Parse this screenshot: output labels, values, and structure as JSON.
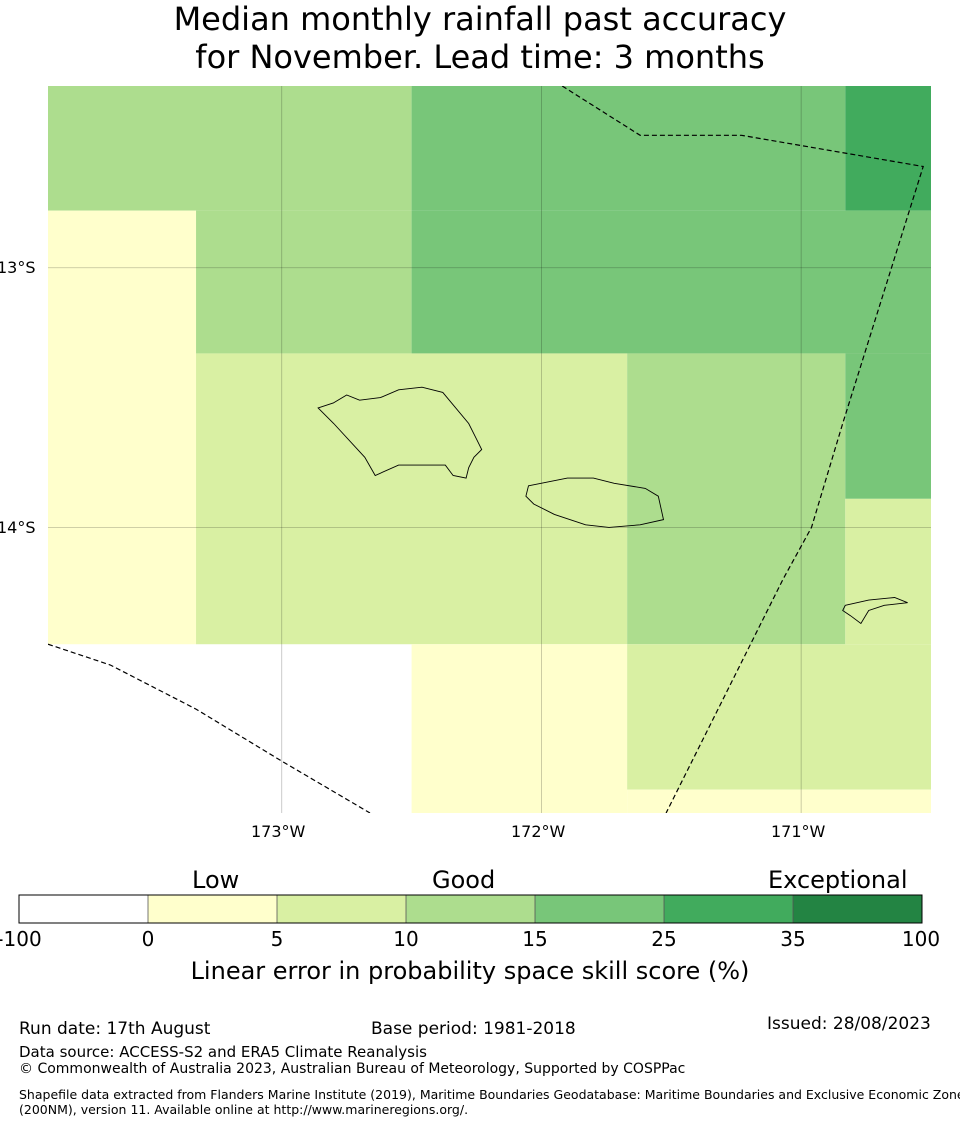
{
  "title": {
    "line1": "Median monthly rainfall past accuracy",
    "line2": "for November. Lead time: 3 months"
  },
  "map": {
    "lat_labels": [
      "13°S",
      "14°S"
    ],
    "lon_labels": [
      "173°W",
      "172°W",
      "171°W"
    ],
    "lon_range": [
      -173.9,
      -170.5
    ],
    "lat_range": [
      -12.3,
      -15.1
    ],
    "gridlines": true,
    "cells": [
      {
        "lon0": -173.9,
        "lon1": -172.5,
        "lat0": -12.3,
        "lat1": -12.78,
        "category": 3
      },
      {
        "lon0": -172.5,
        "lon1": -170.83,
        "lat0": -12.3,
        "lat1": -12.78,
        "category": 4
      },
      {
        "lon0": -170.83,
        "lon1": -170.5,
        "lat0": -12.3,
        "lat1": -12.78,
        "category": 5
      },
      {
        "lon0": -173.9,
        "lon1": -173.33,
        "lat0": -12.78,
        "lat1": -14.45,
        "category": 1
      },
      {
        "lon0": -173.33,
        "lon1": -172.5,
        "lat0": -12.78,
        "lat1": -13.33,
        "category": 3
      },
      {
        "lon0": -172.5,
        "lon1": -170.5,
        "lat0": -12.78,
        "lat1": -13.33,
        "category": 4
      },
      {
        "lon0": -173.33,
        "lon1": -171.67,
        "lat0": -13.33,
        "lat1": -14.45,
        "category": 2
      },
      {
        "lon0": -171.67,
        "lon1": -170.83,
        "lat0": -13.33,
        "lat1": -14.45,
        "category": 3
      },
      {
        "lon0": -170.83,
        "lon1": -170.5,
        "lat0": -13.33,
        "lat1": -13.89,
        "category": 4
      },
      {
        "lon0": -170.83,
        "lon1": -170.5,
        "lat0": -13.89,
        "lat1": -14.45,
        "category": 2
      },
      {
        "lon0": -172.5,
        "lon1": -171.67,
        "lat0": -14.45,
        "lat1": -15.1,
        "category": 1
      },
      {
        "lon0": -171.67,
        "lon1": -170.5,
        "lat0": -14.45,
        "lat1": -15.01,
        "category": 2
      },
      {
        "lon0": -171.67,
        "lon1": -170.5,
        "lat0": -15.01,
        "lat1": -15.1,
        "category": 1
      }
    ],
    "boundaries": [
      [
        [
          -171.92,
          -12.3
        ],
        [
          -171.62,
          -12.49
        ],
        [
          -171.23,
          -12.49
        ],
        [
          -170.53,
          -12.61
        ],
        [
          -170.84,
          -13.6
        ],
        [
          -170.96,
          -14.0
        ],
        [
          -171.07,
          -14.2
        ],
        [
          -171.52,
          -15.1
        ]
      ],
      [
        [
          -173.9,
          -14.45
        ],
        [
          -173.66,
          -14.53
        ],
        [
          -173.33,
          -14.7
        ],
        [
          -173.0,
          -14.9
        ],
        [
          -172.66,
          -15.1
        ]
      ]
    ],
    "islands": [
      {
        "name": "Savaii",
        "outline": [
          [
            -172.8,
            -13.52
          ],
          [
            -172.75,
            -13.49
          ],
          [
            -172.7,
            -13.51
          ],
          [
            -172.62,
            -13.5
          ],
          [
            -172.55,
            -13.47
          ],
          [
            -172.46,
            -13.46
          ],
          [
            -172.38,
            -13.48
          ],
          [
            -172.28,
            -13.6
          ],
          [
            -172.25,
            -13.66
          ],
          [
            -172.23,
            -13.7
          ],
          [
            -172.26,
            -13.73
          ],
          [
            -172.28,
            -13.77
          ],
          [
            -172.29,
            -13.81
          ],
          [
            -172.34,
            -13.8
          ],
          [
            -172.37,
            -13.76
          ],
          [
            -172.4,
            -13.76
          ],
          [
            -172.55,
            -13.76
          ],
          [
            -172.64,
            -13.8
          ],
          [
            -172.68,
            -13.73
          ],
          [
            -172.8,
            -13.6
          ],
          [
            -172.86,
            -13.54
          ]
        ]
      },
      {
        "name": "Upolu",
        "outline": [
          [
            -172.05,
            -13.84
          ],
          [
            -171.9,
            -13.81
          ],
          [
            -171.8,
            -13.81
          ],
          [
            -171.72,
            -13.83
          ],
          [
            -171.6,
            -13.85
          ],
          [
            -171.55,
            -13.88
          ],
          [
            -171.53,
            -13.97
          ],
          [
            -171.62,
            -13.99
          ],
          [
            -171.74,
            -14.0
          ],
          [
            -171.83,
            -13.99
          ],
          [
            -171.95,
            -13.95
          ],
          [
            -172.03,
            -13.91
          ],
          [
            -172.06,
            -13.88
          ]
        ]
      },
      {
        "name": "Tutuila",
        "outline": [
          [
            -170.83,
            -14.3
          ],
          [
            -170.74,
            -14.28
          ],
          [
            -170.64,
            -14.27
          ],
          [
            -170.59,
            -14.29
          ],
          [
            -170.68,
            -14.3
          ],
          [
            -170.74,
            -14.32
          ],
          [
            -170.77,
            -14.37
          ],
          [
            -170.81,
            -14.34
          ],
          [
            -170.84,
            -14.32
          ]
        ]
      }
    ]
  },
  "colorbar": {
    "group_labels": [
      "Low",
      "Good",
      "Exceptional"
    ],
    "ticks": [
      "-100",
      "0",
      "5",
      "10",
      "15",
      "25",
      "35",
      "100"
    ],
    "colors": [
      "#ffffff",
      "#ffffcc",
      "#d9f0a3",
      "#addd8e",
      "#78c679",
      "#41ab5d",
      "#238443"
    ],
    "label": "Linear error in probability space skill score (%)"
  },
  "footer": {
    "run_date": "Run date: 17th August",
    "base_period": "Base period: 1981-2018",
    "issued": "Issued: 28/08/2023",
    "data_source": "Data source: ACCESS-S2 and ERA5 Climate Reanalysis",
    "copyright": "© Commonwealth of Australia 2023, Australian Bureau of Meteorology, Supported by COSPPac",
    "shapefile_line1": "Shapefile data extracted from Flanders Marine Institute (2019), Maritime Boundaries Geodatabase: Maritime Boundaries and Exclusive Economic Zones",
    "shapefile_line2": "(200NM), version 11. Available online at http://www.marineregions.org/."
  }
}
